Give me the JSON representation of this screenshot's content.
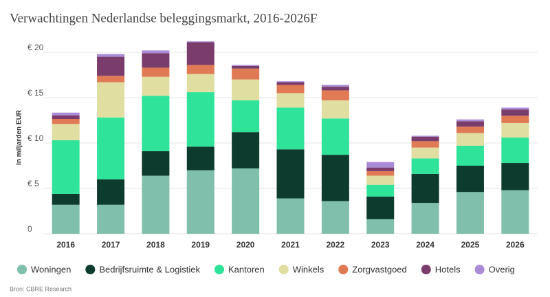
{
  "chart_data": {
    "type": "stacked_bar",
    "title": "Verwachtingen Nederlandse beleggingsmarkt, 2016-2026F",
    "y_label": "In miljarden EUR",
    "source": "Bron: CBRE Research",
    "categories": [
      "2016",
      "2017",
      "2018",
      "2019",
      "2020",
      "2021",
      "2022",
      "2023",
      "2024",
      "2025",
      "2026"
    ],
    "series": [
      {
        "name": "Woningen",
        "color": "#7fbfab",
        "values": [
          3.2,
          3.2,
          6.4,
          7.0,
          7.2,
          3.9,
          3.6,
          1.6,
          3.4,
          4.6,
          4.8
        ]
      },
      {
        "name": "Bedrijfsruimte & Logistiek",
        "color": "#0d3b2e",
        "values": [
          1.2,
          2.8,
          2.7,
          2.6,
          4.0,
          5.4,
          5.1,
          2.5,
          3.2,
          2.9,
          3.0
        ]
      },
      {
        "name": "Kantoren",
        "color": "#2fe39a",
        "values": [
          5.9,
          6.8,
          6.1,
          6.0,
          3.5,
          4.6,
          4.0,
          1.3,
          1.7,
          2.2,
          2.8
        ]
      },
      {
        "name": "Winkels",
        "color": "#e0dea0",
        "values": [
          1.8,
          3.9,
          2.1,
          2.0,
          2.3,
          1.6,
          2.0,
          1.0,
          1.2,
          1.4,
          1.6
        ]
      },
      {
        "name": "Zorgvastgoed",
        "color": "#e07a55",
        "values": [
          0.55,
          0.7,
          1.0,
          1.0,
          1.2,
          0.9,
          1.1,
          0.5,
          0.7,
          0.7,
          0.8
        ]
      },
      {
        "name": "Hotels",
        "color": "#7a3c6a",
        "values": [
          0.4,
          2.1,
          1.6,
          2.5,
          0.3,
          0.3,
          0.4,
          0.4,
          0.5,
          0.6,
          0.7
        ]
      },
      {
        "name": "Overig",
        "color": "#a98bd6",
        "values": [
          0.3,
          0.3,
          0.3,
          0.1,
          0.1,
          0.1,
          0.2,
          0.6,
          0.1,
          0.2,
          0.2
        ]
      }
    ],
    "ylim": [
      0,
      22
    ],
    "yticks": [
      0,
      {
        "value": 5,
        "label": "€ 5"
      },
      {
        "value": 10,
        "label": "€ 10"
      },
      {
        "value": 15,
        "label": "€ 15"
      },
      {
        "value": 20,
        "label": "€ 20"
      }
    ],
    "grid": true
  }
}
